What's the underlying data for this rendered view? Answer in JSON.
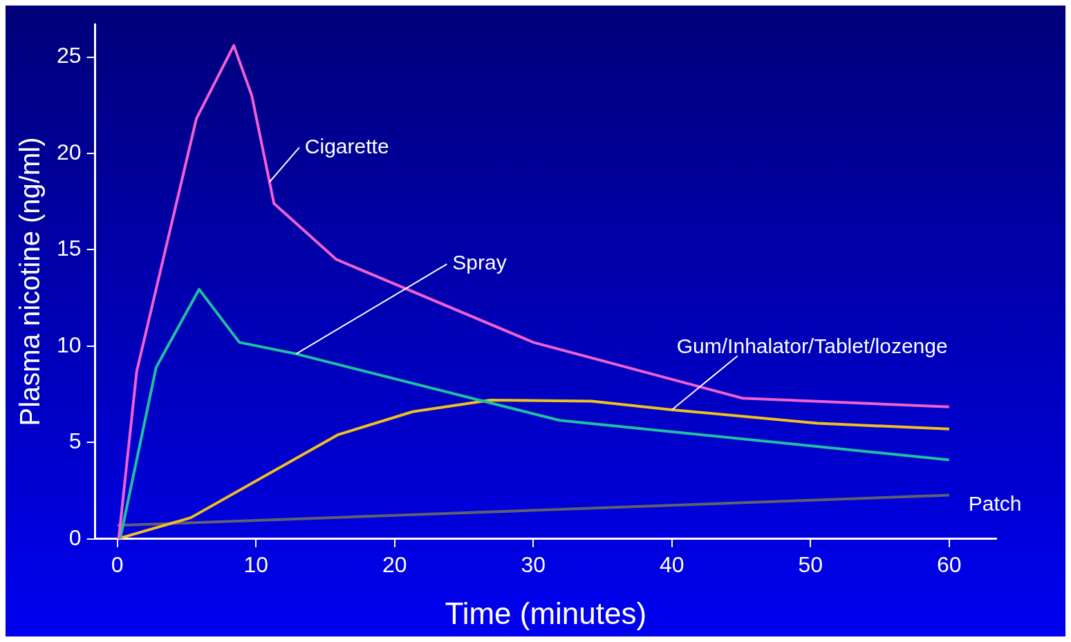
{
  "chart_data": {
    "type": "line",
    "xlabel": "Time (minutes)",
    "ylabel": "Plasma nicotine (ng/ml)",
    "xlim": [
      -1.6,
      63.4
    ],
    "ylim": [
      0,
      26.7
    ],
    "xticks": [
      0,
      10,
      20,
      30,
      40,
      50,
      60
    ],
    "yticks": [
      0,
      5,
      10,
      15,
      20,
      25
    ],
    "grid": false,
    "legend": false,
    "marker": "none",
    "line_style": "solid",
    "series": [
      {
        "name": "Cigarette",
        "color": "#f060d0",
        "x": [
          0.1,
          1.4,
          5.7,
          8.4,
          9.7,
          11.3,
          15.8,
          30,
          45.1,
          60
        ],
        "values": [
          0,
          8.7,
          21.8,
          25.6,
          23,
          17.4,
          14.5,
          10.2,
          7.3,
          6.85
        ]
      },
      {
        "name": "Spray",
        "color": "#20c0a0",
        "x": [
          0.2,
          2.8,
          5.9,
          8.8,
          12.9,
          31.9,
          60
        ],
        "values": [
          0,
          8.9,
          12.95,
          10.2,
          9.6,
          6.15,
          4.1
        ]
      },
      {
        "name": "Gum/Inhalator/Tablet/lozenge",
        "color": "#f0c020",
        "x": [
          0,
          5.3,
          15.9,
          21.3,
          26.9,
          34.2,
          40,
          50.5,
          60
        ],
        "values": [
          0,
          1.1,
          5.4,
          6.6,
          7.2,
          7.15,
          6.7,
          6.0,
          5.7
        ]
      },
      {
        "name": "Patch",
        "color": "#606070",
        "x": [
          0,
          60
        ],
        "values": [
          0.7,
          2.27
        ]
      }
    ]
  }
}
